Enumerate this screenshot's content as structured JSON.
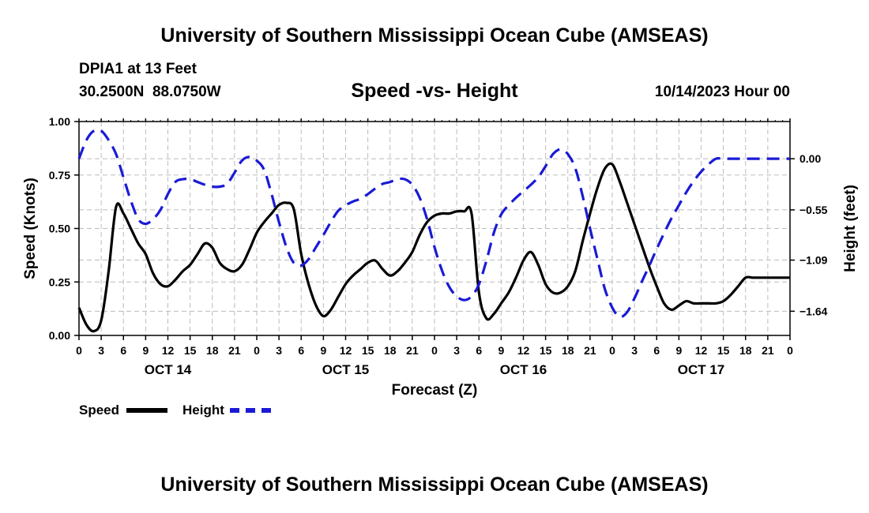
{
  "header": {
    "title": "University of Southern Mississippi Ocean Cube (AMSEAS)",
    "station": "DPIA1 at 13 Feet",
    "coords": "30.2500N  88.0750W",
    "subtitle": "Speed -vs- Height",
    "datetime": "10/14/2023 Hour 00"
  },
  "footer": {
    "title": "University of Southern Mississippi Ocean Cube (AMSEAS)"
  },
  "legend": {
    "speed_label": "Speed",
    "height_label": "Height"
  },
  "colors": {
    "speed": "#000000",
    "height": "#1a1ad6",
    "grid": "#bbbbbb"
  },
  "chart_data": {
    "type": "line",
    "xlabel": "Forecast (Z)",
    "ylabel_left": "Speed (Knots)",
    "ylabel_right": "Height (feet)",
    "xlim": [
      0,
      96
    ],
    "ylim_left": [
      0,
      1
    ],
    "ylim_right": [
      -1.9,
      0.4
    ],
    "x_tick_labels": [
      "0",
      "3",
      "6",
      "9",
      "12",
      "15",
      "18",
      "21",
      "0",
      "3",
      "6",
      "9",
      "12",
      "15",
      "18",
      "21",
      "0",
      "3",
      "6",
      "9",
      "12",
      "15",
      "18",
      "21",
      "0",
      "3",
      "6",
      "9",
      "12",
      "15",
      "18",
      "21",
      "0"
    ],
    "day_labels": [
      {
        "x": 12,
        "label": "OCT 14"
      },
      {
        "x": 36,
        "label": "OCT 15"
      },
      {
        "x": 60,
        "label": "OCT 16"
      },
      {
        "x": 84,
        "label": "OCT 17"
      }
    ],
    "y_left_ticks": [
      {
        "v": 0,
        "label": "0.00"
      },
      {
        "v": 0.25,
        "label": "0.25"
      },
      {
        "v": 0.5,
        "label": "0.50"
      },
      {
        "v": 0.75,
        "label": "0.75"
      },
      {
        "v": 1,
        "label": "1.00"
      }
    ],
    "y_right_ticks": [
      {
        "v": 0.0,
        "label": "0.00"
      },
      {
        "v": -0.55,
        "label": "−0.55"
      },
      {
        "v": -1.09,
        "label": "−1.09"
      },
      {
        "v": -1.64,
        "label": "−1.64"
      }
    ],
    "series": [
      {
        "name": "Speed",
        "axis": "left",
        "style": "solid",
        "x": [
          0,
          1,
          2,
          3,
          4,
          5,
          6,
          7,
          8,
          9,
          10,
          11,
          12,
          13,
          14,
          15,
          16,
          17,
          18,
          19,
          20,
          21,
          22,
          23,
          24,
          25,
          26,
          27,
          28,
          29,
          30,
          31,
          32,
          33,
          34,
          35,
          36,
          37,
          38,
          39,
          40,
          41,
          42,
          43,
          44,
          45,
          46,
          47,
          48,
          49,
          50,
          51,
          52,
          53,
          54,
          55,
          56,
          57,
          58,
          59,
          60,
          61,
          62,
          63,
          64,
          65,
          66,
          67,
          68,
          69,
          70,
          71,
          72,
          73,
          74,
          75,
          76,
          77,
          78,
          79,
          80,
          81,
          82,
          83,
          84,
          85,
          86,
          87,
          88,
          89,
          90,
          91,
          92,
          93,
          94,
          95,
          96
        ],
        "values": [
          0.13,
          0.05,
          0.02,
          0.07,
          0.3,
          0.6,
          0.57,
          0.5,
          0.43,
          0.38,
          0.29,
          0.24,
          0.23,
          0.26,
          0.3,
          0.33,
          0.38,
          0.43,
          0.41,
          0.34,
          0.31,
          0.3,
          0.33,
          0.4,
          0.48,
          0.53,
          0.57,
          0.61,
          0.62,
          0.59,
          0.38,
          0.24,
          0.14,
          0.09,
          0.12,
          0.18,
          0.24,
          0.28,
          0.31,
          0.34,
          0.35,
          0.31,
          0.28,
          0.3,
          0.34,
          0.39,
          0.47,
          0.53,
          0.56,
          0.57,
          0.57,
          0.58,
          0.58,
          0.57,
          0.2,
          0.08,
          0.1,
          0.15,
          0.2,
          0.27,
          0.35,
          0.39,
          0.33,
          0.24,
          0.2,
          0.2,
          0.23,
          0.3,
          0.44,
          0.57,
          0.69,
          0.78,
          0.8,
          0.72,
          0.62,
          0.52,
          0.42,
          0.32,
          0.23,
          0.15,
          0.12,
          0.14,
          0.16,
          0.15,
          0.15,
          0.15,
          0.15,
          0.16,
          0.19,
          0.23,
          0.27,
          0.27,
          0.27,
          0.27,
          0.27,
          0.27,
          0.27
        ]
      },
      {
        "name": "Height",
        "axis": "right",
        "style": "dashed",
        "x": [
          0,
          1,
          2,
          3,
          4,
          5,
          6,
          7,
          8,
          9,
          10,
          11,
          12,
          13,
          14,
          15,
          16,
          17,
          18,
          19,
          20,
          21,
          22,
          23,
          24,
          25,
          26,
          27,
          28,
          29,
          30,
          31,
          32,
          33,
          34,
          35,
          36,
          37,
          38,
          39,
          40,
          41,
          42,
          43,
          44,
          45,
          46,
          47,
          48,
          49,
          50,
          51,
          52,
          53,
          54,
          55,
          56,
          57,
          58,
          59,
          60,
          61,
          62,
          63,
          64,
          65,
          66,
          67,
          68,
          69,
          70,
          71,
          72,
          73,
          74,
          75,
          76,
          77,
          78,
          79,
          80,
          81,
          82,
          83,
          84,
          85,
          86,
          87,
          88,
          89,
          90,
          91,
          92,
          93,
          94,
          95,
          96
        ],
        "values": [
          0.0,
          0.2,
          0.3,
          0.3,
          0.2,
          0.05,
          -0.2,
          -0.45,
          -0.65,
          -0.7,
          -0.65,
          -0.55,
          -0.38,
          -0.25,
          -0.22,
          -0.22,
          -0.25,
          -0.28,
          -0.3,
          -0.3,
          -0.27,
          -0.15,
          -0.02,
          0.02,
          -0.02,
          -0.12,
          -0.38,
          -0.68,
          -0.95,
          -1.12,
          -1.15,
          -1.08,
          -0.95,
          -0.82,
          -0.68,
          -0.56,
          -0.5,
          -0.46,
          -0.43,
          -0.38,
          -0.32,
          -0.27,
          -0.25,
          -0.22,
          -0.22,
          -0.28,
          -0.42,
          -0.65,
          -0.95,
          -1.2,
          -1.38,
          -1.48,
          -1.52,
          -1.48,
          -1.35,
          -1.1,
          -0.8,
          -0.6,
          -0.5,
          -0.42,
          -0.35,
          -0.28,
          -0.2,
          -0.08,
          0.05,
          0.1,
          0.05,
          -0.1,
          -0.4,
          -0.75,
          -1.08,
          -1.4,
          -1.6,
          -1.7,
          -1.65,
          -1.5,
          -1.32,
          -1.15,
          -0.97,
          -0.8,
          -0.64,
          -0.5,
          -0.36,
          -0.24,
          -0.14,
          -0.06,
          0.0,
          0.0,
          0.0,
          0.0,
          0.0,
          0.0,
          0.0,
          0.0,
          0.0,
          0.0,
          0.0
        ]
      }
    ]
  }
}
